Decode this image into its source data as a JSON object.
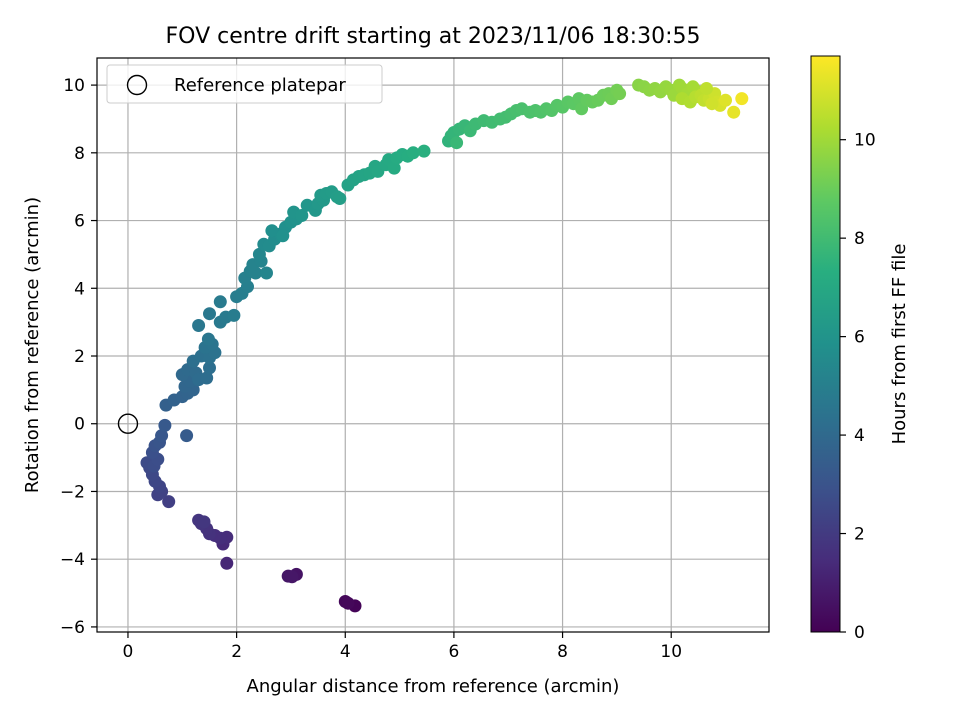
{
  "chart_data": {
    "type": "scatter",
    "title": "FOV centre drift starting at 2023/11/06 18:30:55",
    "xlabel": "Angular distance from reference (arcmin)",
    "ylabel": "Rotation from reference (arcmin)",
    "xlim": [
      -0.57,
      11.8
    ],
    "ylim": [
      -6.15,
      10.8
    ],
    "x_ticks": [
      0,
      2,
      4,
      6,
      8,
      10
    ],
    "y_ticks": [
      -6,
      -4,
      -2,
      0,
      2,
      4,
      6,
      8,
      10
    ],
    "grid": true,
    "legend": {
      "position": "top-left",
      "entries": [
        "Reference platepar"
      ]
    },
    "reference_point": {
      "x": 0,
      "y": 0,
      "label": "Reference platepar",
      "marker": "open-circle"
    },
    "colorbar": {
      "label": "Hours from first FF file",
      "min": 0,
      "max": 11.7,
      "ticks": [
        0,
        2,
        4,
        6,
        8,
        10
      ],
      "colormap": "viridis"
    },
    "points": [
      [
        4.18,
        -5.38,
        0.1
      ],
      [
        4.0,
        -5.25,
        0.2
      ],
      [
        4.05,
        -5.3,
        0.25
      ],
      [
        3.1,
        -4.45,
        0.6
      ],
      [
        2.95,
        -4.5,
        0.7
      ],
      [
        3.02,
        -4.52,
        0.75
      ],
      [
        1.82,
        -4.12,
        1.3
      ],
      [
        1.75,
        -3.55,
        1.4
      ],
      [
        1.82,
        -3.35,
        1.5
      ],
      [
        1.7,
        -3.38,
        1.55
      ],
      [
        1.6,
        -3.3,
        1.6
      ],
      [
        1.5,
        -3.25,
        1.7
      ],
      [
        1.45,
        -3.1,
        1.75
      ],
      [
        1.35,
        -2.95,
        1.8
      ],
      [
        1.3,
        -2.85,
        1.85
      ],
      [
        1.4,
        -2.9,
        1.9
      ],
      [
        0.75,
        -2.3,
        2.2
      ],
      [
        0.55,
        -2.1,
        2.3
      ],
      [
        0.62,
        -2.0,
        2.35
      ],
      [
        0.58,
        -1.85,
        2.4
      ],
      [
        0.5,
        -1.7,
        2.5
      ],
      [
        0.45,
        -1.5,
        2.55
      ],
      [
        0.4,
        -1.3,
        2.6
      ],
      [
        0.35,
        -1.15,
        2.7
      ],
      [
        0.48,
        -1.25,
        2.75
      ],
      [
        0.55,
        -1.05,
        2.8
      ],
      [
        0.45,
        -0.85,
        2.9
      ],
      [
        0.5,
        -0.65,
        3.0
      ],
      [
        0.58,
        -0.55,
        3.1
      ],
      [
        0.62,
        -0.35,
        3.2
      ],
      [
        0.68,
        -0.05,
        3.3
      ],
      [
        1.08,
        -0.35,
        3.4
      ],
      [
        0.7,
        0.55,
        3.6
      ],
      [
        0.85,
        0.7,
        3.7
      ],
      [
        1.0,
        0.8,
        3.75
      ],
      [
        1.1,
        0.9,
        3.8
      ],
      [
        1.2,
        1.0,
        3.85
      ],
      [
        1.05,
        1.1,
        3.9
      ],
      [
        1.15,
        1.25,
        3.95
      ],
      [
        1.0,
        1.45,
        4.0
      ],
      [
        1.1,
        1.6,
        4.05
      ],
      [
        1.25,
        1.5,
        4.1
      ],
      [
        1.3,
        1.3,
        4.15
      ],
      [
        1.45,
        1.35,
        4.2
      ],
      [
        1.5,
        1.65,
        4.25
      ],
      [
        1.2,
        1.85,
        4.3
      ],
      [
        1.35,
        2.0,
        4.35
      ],
      [
        1.5,
        1.95,
        4.4
      ],
      [
        1.6,
        2.1,
        4.45
      ],
      [
        1.42,
        2.25,
        4.5
      ],
      [
        1.55,
        2.35,
        4.55
      ],
      [
        1.48,
        2.5,
        4.6
      ],
      [
        1.3,
        2.9,
        4.65
      ],
      [
        1.5,
        3.25,
        4.7
      ],
      [
        1.7,
        3.0,
        4.75
      ],
      [
        1.8,
        3.15,
        4.8
      ],
      [
        1.7,
        3.6,
        4.85
      ],
      [
        1.95,
        3.2,
        4.9
      ],
      [
        2.0,
        3.75,
        4.95
      ],
      [
        2.1,
        3.85,
        5.0
      ],
      [
        2.2,
        4.05,
        5.05
      ],
      [
        2.15,
        4.3,
        5.1
      ],
      [
        2.25,
        4.5,
        5.15
      ],
      [
        2.35,
        4.45,
        5.2
      ],
      [
        2.3,
        4.7,
        5.25
      ],
      [
        2.45,
        4.8,
        5.3
      ],
      [
        2.55,
        4.45,
        5.35
      ],
      [
        2.42,
        5.0,
        5.4
      ],
      [
        2.5,
        5.3,
        5.6
      ],
      [
        2.6,
        5.25,
        5.65
      ],
      [
        2.7,
        5.45,
        5.7
      ],
      [
        2.8,
        5.6,
        5.75
      ],
      [
        2.65,
        5.7,
        5.8
      ],
      [
        2.9,
        5.8,
        5.85
      ],
      [
        2.85,
        5.55,
        5.9
      ],
      [
        3.0,
        5.95,
        5.95
      ],
      [
        3.1,
        6.05,
        6.0
      ],
      [
        3.05,
        6.25,
        6.05
      ],
      [
        3.2,
        6.15,
        6.1
      ],
      [
        3.3,
        6.45,
        6.15
      ],
      [
        3.45,
        6.3,
        6.2
      ],
      [
        3.5,
        6.5,
        6.25
      ],
      [
        3.6,
        6.6,
        6.3
      ],
      [
        3.55,
        6.75,
        6.35
      ],
      [
        3.65,
        6.8,
        6.4
      ],
      [
        3.75,
        6.85,
        6.45
      ],
      [
        3.85,
        6.7,
        6.5
      ],
      [
        3.9,
        6.65,
        6.55
      ],
      [
        4.05,
        7.05,
        6.7
      ],
      [
        4.15,
        7.2,
        6.75
      ],
      [
        4.25,
        7.3,
        6.8
      ],
      [
        4.35,
        7.35,
        6.85
      ],
      [
        4.45,
        7.4,
        6.9
      ],
      [
        4.55,
        7.6,
        6.95
      ],
      [
        4.6,
        7.45,
        7.0
      ],
      [
        4.75,
        7.65,
        7.05
      ],
      [
        4.8,
        7.8,
        7.1
      ],
      [
        4.9,
        7.55,
        7.15
      ],
      [
        4.95,
        7.85,
        7.2
      ],
      [
        5.05,
        7.95,
        7.25
      ],
      [
        5.15,
        7.9,
        7.3
      ],
      [
        5.25,
        8.0,
        7.35
      ],
      [
        5.45,
        8.05,
        7.4
      ],
      [
        5.9,
        8.35,
        7.6
      ],
      [
        5.95,
        8.5,
        7.65
      ],
      [
        6.0,
        8.6,
        7.7
      ],
      [
        6.1,
        8.7,
        7.75
      ],
      [
        6.2,
        8.8,
        7.8
      ],
      [
        6.05,
        8.3,
        7.85
      ],
      [
        6.3,
        8.65,
        7.9
      ],
      [
        6.4,
        8.85,
        7.95
      ],
      [
        6.55,
        8.95,
        8.0
      ],
      [
        6.7,
        8.9,
        8.05
      ],
      [
        6.85,
        9.0,
        8.1
      ],
      [
        6.95,
        9.05,
        8.15
      ],
      [
        7.05,
        9.15,
        8.2
      ],
      [
        7.15,
        9.25,
        8.25
      ],
      [
        7.25,
        9.3,
        8.3
      ],
      [
        7.4,
        9.2,
        8.35
      ],
      [
        7.5,
        9.25,
        8.4
      ],
      [
        7.6,
        9.2,
        8.45
      ],
      [
        7.7,
        9.3,
        8.5
      ],
      [
        7.8,
        9.25,
        8.55
      ],
      [
        7.9,
        9.4,
        8.6
      ],
      [
        8.0,
        9.35,
        8.65
      ],
      [
        8.1,
        9.5,
        8.7
      ],
      [
        8.2,
        9.45,
        8.75
      ],
      [
        8.3,
        9.6,
        8.8
      ],
      [
        8.35,
        9.3,
        8.85
      ],
      [
        8.45,
        9.55,
        8.9
      ],
      [
        8.55,
        9.5,
        8.95
      ],
      [
        8.65,
        9.55,
        9.0
      ],
      [
        8.75,
        9.7,
        9.05
      ],
      [
        8.85,
        9.75,
        9.1
      ],
      [
        8.9,
        9.6,
        9.15
      ],
      [
        9.0,
        9.85,
        9.2
      ],
      [
        9.05,
        9.75,
        9.25
      ],
      [
        9.4,
        10.0,
        9.6
      ],
      [
        9.5,
        9.95,
        9.65
      ],
      [
        9.6,
        9.85,
        9.7
      ],
      [
        9.7,
        9.9,
        9.75
      ],
      [
        9.8,
        9.8,
        9.8
      ],
      [
        9.9,
        9.95,
        9.85
      ],
      [
        10.0,
        9.85,
        9.9
      ],
      [
        10.05,
        9.7,
        9.95
      ],
      [
        10.15,
        10.0,
        10.0
      ],
      [
        10.2,
        9.9,
        10.05
      ],
      [
        10.3,
        9.75,
        10.1
      ],
      [
        10.4,
        9.95,
        10.15
      ],
      [
        10.5,
        9.8,
        10.2
      ],
      [
        10.2,
        9.6,
        10.3
      ],
      [
        10.35,
        9.5,
        10.35
      ],
      [
        10.45,
        9.65,
        10.45
      ],
      [
        10.55,
        9.7,
        10.55
      ],
      [
        10.6,
        9.55,
        10.65
      ],
      [
        10.7,
        9.6,
        10.75
      ],
      [
        10.8,
        9.75,
        10.85
      ],
      [
        10.85,
        9.5,
        10.95
      ],
      [
        10.9,
        9.4,
        11.05
      ],
      [
        11.0,
        9.55,
        11.15
      ],
      [
        11.15,
        9.2,
        11.3
      ],
      [
        11.3,
        9.6,
        11.5
      ],
      [
        10.65,
        9.9,
        10.6
      ],
      [
        10.75,
        9.45,
        10.9
      ]
    ]
  }
}
